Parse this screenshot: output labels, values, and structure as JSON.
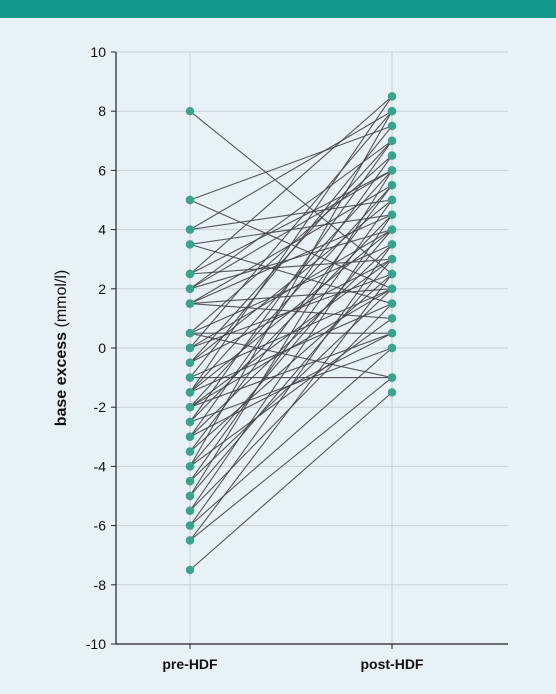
{
  "header_color": "#12988a",
  "background_color": "#e8f1f6",
  "point_color": "#3aa38d",
  "line_color": "#444444",
  "chart_data": {
    "type": "line",
    "title": "",
    "ylabel_bold": "base excess",
    "ylabel_unit": " (mmol/l)",
    "categories": [
      "pre-HDF",
      "post-HDF"
    ],
    "ylim": [
      -10,
      10
    ],
    "yticks": [
      -10,
      -8,
      -6,
      -4,
      -2,
      0,
      2,
      4,
      6,
      8,
      10
    ],
    "ytick_labels": [
      "-10",
      "-8",
      "-6",
      "-4",
      "-2",
      "0",
      "2",
      "4",
      "6",
      "8",
      "10"
    ],
    "grid": true,
    "legend": "none",
    "pairs": [
      [
        8.0,
        2.5
      ],
      [
        5.0,
        2.0
      ],
      [
        5.0,
        7.5
      ],
      [
        4.0,
        5.0
      ],
      [
        4.0,
        8.0
      ],
      [
        3.5,
        4.5
      ],
      [
        3.5,
        1.5
      ],
      [
        2.5,
        6.0
      ],
      [
        2.5,
        3.0
      ],
      [
        2.5,
        8.5
      ],
      [
        2.0,
        7.0
      ],
      [
        2.0,
        4.0
      ],
      [
        1.5,
        5.5
      ],
      [
        1.5,
        2.0
      ],
      [
        1.5,
        1.0
      ],
      [
        0.5,
        6.5
      ],
      [
        0.5,
        3.5
      ],
      [
        0.5,
        0.5
      ],
      [
        0.0,
        4.0
      ],
      [
        0.0,
        8.0
      ],
      [
        0.0,
        2.5
      ],
      [
        -0.5,
        5.0
      ],
      [
        -0.5,
        3.0
      ],
      [
        -1.0,
        7.5
      ],
      [
        -1.0,
        2.0
      ],
      [
        -1.0,
        -1.0
      ],
      [
        -1.5,
        6.0
      ],
      [
        -1.5,
        4.0
      ],
      [
        -1.5,
        1.5
      ],
      [
        -2.0,
        5.5
      ],
      [
        -2.0,
        3.0
      ],
      [
        -2.0,
        0.5
      ],
      [
        -2.5,
        7.0
      ],
      [
        -2.5,
        4.5
      ],
      [
        -2.5,
        0.0
      ],
      [
        -3.0,
        6.5
      ],
      [
        -3.0,
        3.5
      ],
      [
        -3.5,
        5.5
      ],
      [
        -3.5,
        2.5
      ],
      [
        -4.0,
        8.0
      ],
      [
        -4.0,
        4.0
      ],
      [
        -4.0,
        1.0
      ],
      [
        -4.5,
        5.0
      ],
      [
        -4.5,
        2.0
      ],
      [
        -5.0,
        6.0
      ],
      [
        -5.0,
        3.0
      ],
      [
        -5.5,
        4.5
      ],
      [
        -5.5,
        1.5
      ],
      [
        -6.0,
        3.5
      ],
      [
        -6.0,
        0.0
      ],
      [
        -6.5,
        2.5
      ],
      [
        -6.5,
        -1.0
      ],
      [
        -7.5,
        -1.5
      ],
      [
        -1.5,
        8.5
      ],
      [
        0.5,
        -1.0
      ],
      [
        1.5,
        4.5
      ],
      [
        -3.0,
        0.5
      ],
      [
        2.0,
        6.0
      ],
      [
        -0.5,
        7.0
      ],
      [
        -2.0,
        2.0
      ]
    ]
  }
}
